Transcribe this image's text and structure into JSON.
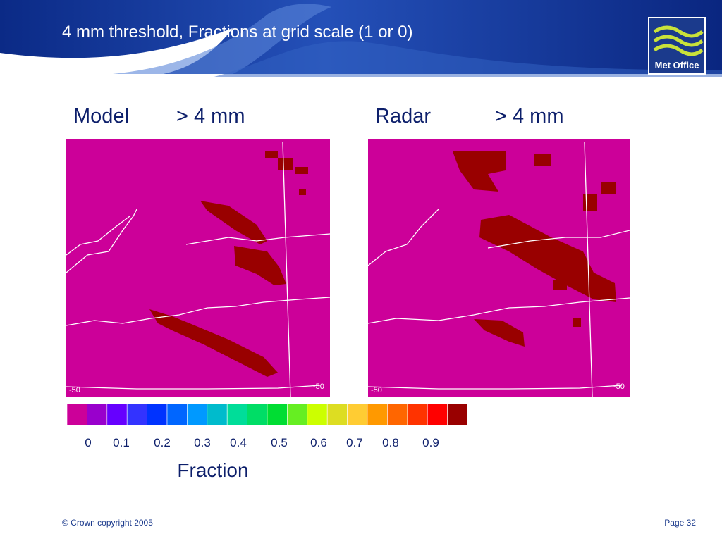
{
  "header": {
    "title": "4 mm threshold, Fractions at grid scale (1 or 0)",
    "logo": "Met Office"
  },
  "panels": [
    {
      "name": "Model",
      "threshold": "> 4 mm",
      "axis_labels": [
        "-50",
        "-50"
      ]
    },
    {
      "name": "Radar",
      "threshold": "> 4 mm",
      "axis_labels": [
        "-50",
        "-50"
      ]
    }
  ],
  "colorbar": {
    "colors": [
      "#cc0099",
      "#9900cc",
      "#6600ff",
      "#3333ff",
      "#0033ff",
      "#0066ff",
      "#0099ff",
      "#00bbcc",
      "#00dd99",
      "#00dd66",
      "#00dd33",
      "#66ee22",
      "#ccff00",
      "#dddd22",
      "#ffcc33",
      "#ff9900",
      "#ff6600",
      "#ff3300",
      "#ff0000",
      "#990000"
    ],
    "labels": [
      "0",
      "0.1",
      "0.2",
      "0.3",
      "0.4",
      "0.5",
      "0.6",
      "0.7",
      "0.8",
      "0.9"
    ],
    "title": "Fraction"
  },
  "footer": {
    "copyright": "© Crown copyright 2005",
    "page": "Page 32"
  }
}
